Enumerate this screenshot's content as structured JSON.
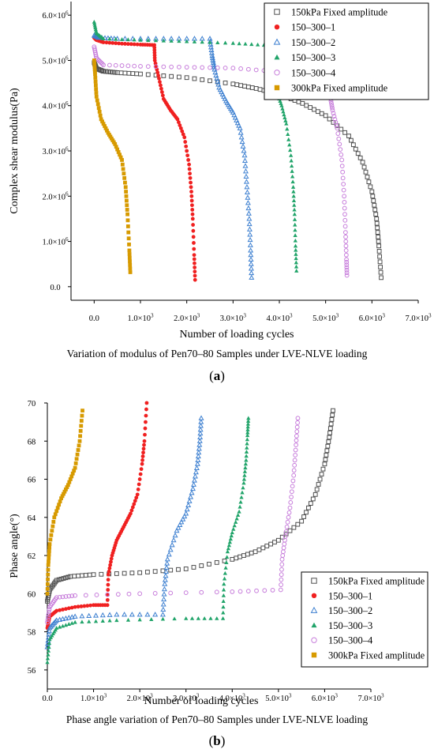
{
  "chart_data": [
    {
      "type": "scatter",
      "panel": "a",
      "xlabel": "Number of loading cycles",
      "ylabel": "Complex shear modulus(Pa)",
      "caption": "Variation of modulus of Pen70–80 Samples under LVE-NLVE loading",
      "xlim": [
        -500,
        7000
      ],
      "ylim": [
        -300000,
        6300000
      ],
      "x_ticks": [
        0,
        1000,
        2000,
        3000,
        4000,
        5000,
        6000,
        7000
      ],
      "x_tick_labels": [
        "0.0",
        "1.0×10^3",
        "2.0×10^3",
        "3.0×10^3",
        "4.0×10^3",
        "5.0×10^3",
        "6.0×10^3",
        "7.0×10^3"
      ],
      "y_ticks": [
        0,
        1000000,
        2000000,
        3000000,
        4000000,
        5000000,
        6000000
      ],
      "y_tick_labels": [
        "0.0",
        "1.0×10^6",
        "2.0×10^6",
        "3.0×10^6",
        "4.0×10^6",
        "5.0×10^6",
        "6.0×10^6"
      ],
      "legend_position": "top-right",
      "series": [
        {
          "name": "150kPa Fixed amplitude",
          "marker": "square-open",
          "color": "#505050",
          "points": [
            [
              0,
              4950000
            ],
            [
              50,
              4820000
            ],
            [
              200,
              4760000
            ],
            [
              500,
              4730000
            ],
            [
              1000,
              4700000
            ],
            [
              2000,
              4620000
            ],
            [
              3000,
              4480000
            ],
            [
              3500,
              4380000
            ],
            [
              4000,
              4250000
            ],
            [
              4500,
              4050000
            ],
            [
              5000,
              3780000
            ],
            [
              5500,
              3330000
            ],
            [
              5800,
              2750000
            ],
            [
              6000,
              2100000
            ],
            [
              6100,
              1500000
            ],
            [
              6150,
              900000
            ],
            [
              6200,
              200000
            ]
          ]
        },
        {
          "name": "150–300–1",
          "marker": "circle-filled",
          "color": "#f02020",
          "points": [
            [
              0,
              5500000
            ],
            [
              50,
              5450000
            ],
            [
              200,
              5400000
            ],
            [
              600,
              5370000
            ],
            [
              1000,
              5350000
            ],
            [
              1300,
              5340000
            ],
            [
              1310,
              5000000
            ],
            [
              1400,
              4600000
            ],
            [
              1500,
              4150000
            ],
            [
              1650,
              3900000
            ],
            [
              1800,
              3700000
            ],
            [
              1950,
              3300000
            ],
            [
              2050,
              2700000
            ],
            [
              2100,
              2100000
            ],
            [
              2130,
              1500000
            ],
            [
              2160,
              700000
            ],
            [
              2180,
              150000
            ]
          ]
        },
        {
          "name": "150–300–2",
          "marker": "triangle-open",
          "color": "#3c7fd0",
          "points": [
            [
              0,
              5550000
            ],
            [
              100,
              5500000
            ],
            [
              500,
              5480000
            ],
            [
              1500,
              5480000
            ],
            [
              2500,
              5480000
            ],
            [
              2550,
              5100000
            ],
            [
              2600,
              4800000
            ],
            [
              2700,
              4400000
            ],
            [
              2850,
              4100000
            ],
            [
              3000,
              3850000
            ],
            [
              3150,
              3500000
            ],
            [
              3250,
              2900000
            ],
            [
              3300,
              2200000
            ],
            [
              3350,
              1500000
            ],
            [
              3380,
              800000
            ],
            [
              3400,
              200000
            ]
          ]
        },
        {
          "name": "150–300–3",
          "marker": "triangle-filled",
          "color": "#21a46a",
          "points": [
            [
              0,
              5850000
            ],
            [
              50,
              5600000
            ],
            [
              200,
              5480000
            ],
            [
              1000,
              5450000
            ],
            [
              2000,
              5420000
            ],
            [
              3000,
              5380000
            ],
            [
              3800,
              5330000
            ],
            [
              3820,
              4950000
            ],
            [
              3850,
              4600000
            ],
            [
              3950,
              4300000
            ],
            [
              4050,
              4000000
            ],
            [
              4150,
              3600000
            ],
            [
              4250,
              2900000
            ],
            [
              4300,
              2200000
            ],
            [
              4330,
              1600000
            ],
            [
              4350,
              900000
            ],
            [
              4370,
              350000
            ]
          ]
        },
        {
          "name": "150–300–4",
          "marker": "circle-open",
          "color": "#c77ddb",
          "points": [
            [
              0,
              5300000
            ],
            [
              50,
              5050000
            ],
            [
              200,
              4900000
            ],
            [
              1000,
              4870000
            ],
            [
              2000,
              4850000
            ],
            [
              3000,
              4830000
            ],
            [
              4000,
              4750000
            ],
            [
              4800,
              4650000
            ],
            [
              5050,
              4620000
            ],
            [
              5100,
              4200000
            ],
            [
              5150,
              3900000
            ],
            [
              5250,
              3500000
            ],
            [
              5350,
              2800000
            ],
            [
              5400,
              2000000
            ],
            [
              5430,
              1200000
            ],
            [
              5450,
              600000
            ],
            [
              5460,
              250000
            ]
          ]
        },
        {
          "name": "300kPa Fixed amplitude",
          "marker": "square-filled",
          "color": "#d79a00",
          "points": [
            [
              0,
              5000000
            ],
            [
              20,
              4700000
            ],
            [
              50,
              4200000
            ],
            [
              150,
              3700000
            ],
            [
              300,
              3400000
            ],
            [
              450,
              3150000
            ],
            [
              600,
              2800000
            ],
            [
              680,
              2200000
            ],
            [
              720,
              1600000
            ],
            [
              760,
              800000
            ],
            [
              780,
              320000
            ]
          ]
        }
      ]
    },
    {
      "type": "scatter",
      "panel": "b",
      "xlabel": "Number of loading cycles",
      "ylabel": "Phase angle(°)",
      "caption": "Phase angle variation of Pen70–80 Samples under LVE-NLVE loading",
      "xlim": [
        0,
        7000
      ],
      "ylim": [
        55,
        70
      ],
      "x_ticks": [
        0,
        1000,
        2000,
        3000,
        4000,
        5000,
        6000,
        7000
      ],
      "x_tick_labels": [
        "0.0",
        "1.0×10^3",
        "2.0×10^3",
        "3.0×10^3",
        "4.0×10^3",
        "5.0×10^3",
        "6.0×10^3",
        "7.0×10^3"
      ],
      "y_ticks": [
        56,
        58,
        60,
        62,
        64,
        66,
        68,
        70
      ],
      "y_tick_labels": [
        "56",
        "58",
        "60",
        "62",
        "64",
        "66",
        "68",
        "70"
      ],
      "legend_position": "bottom-right",
      "series": [
        {
          "name": "150kPa Fixed amplitude",
          "marker": "square-open",
          "color": "#505050",
          "points": [
            [
              0,
              59.6
            ],
            [
              50,
              60.2
            ],
            [
              200,
              60.7
            ],
            [
              500,
              60.9
            ],
            [
              1000,
              61.0
            ],
            [
              2000,
              61.1
            ],
            [
              3000,
              61.3
            ],
            [
              4000,
              61.8
            ],
            [
              4500,
              62.2
            ],
            [
              5000,
              62.8
            ],
            [
              5500,
              63.8
            ],
            [
              5800,
              65.2
            ],
            [
              6000,
              66.8
            ],
            [
              6100,
              68.2
            ],
            [
              6180,
              69.6
            ]
          ]
        },
        {
          "name": "150–300–1",
          "marker": "circle-filled",
          "color": "#f02020",
          "points": [
            [
              0,
              58.2
            ],
            [
              50,
              58.8
            ],
            [
              200,
              59.1
            ],
            [
              600,
              59.3
            ],
            [
              1000,
              59.4
            ],
            [
              1300,
              59.4
            ],
            [
              1320,
              61.0
            ],
            [
              1400,
              62.0
            ],
            [
              1500,
              62.8
            ],
            [
              1650,
              63.5
            ],
            [
              1800,
              64.2
            ],
            [
              1950,
              65.2
            ],
            [
              2050,
              66.8
            ],
            [
              2100,
              68.0
            ],
            [
              2150,
              70.0
            ]
          ]
        },
        {
          "name": "150–300–2",
          "marker": "triangle-open",
          "color": "#3c7fd0",
          "points": [
            [
              0,
              57.2
            ],
            [
              50,
              58.2
            ],
            [
              200,
              58.6
            ],
            [
              600,
              58.8
            ],
            [
              1500,
              58.9
            ],
            [
              2500,
              58.9
            ],
            [
              2540,
              60.5
            ],
            [
              2600,
              61.8
            ],
            [
              2800,
              63.3
            ],
            [
              3000,
              64.2
            ],
            [
              3150,
              65.5
            ],
            [
              3250,
              66.8
            ],
            [
              3300,
              68.0
            ],
            [
              3330,
              69.2
            ]
          ]
        },
        {
          "name": "150–300–3",
          "marker": "triangle-filled",
          "color": "#21a46a",
          "points": [
            [
              0,
              56.4
            ],
            [
              50,
              57.6
            ],
            [
              200,
              58.2
            ],
            [
              600,
              58.5
            ],
            [
              1500,
              58.6
            ],
            [
              3000,
              58.7
            ],
            [
              3800,
              58.7
            ],
            [
              3820,
              60.5
            ],
            [
              3900,
              62.2
            ],
            [
              4000,
              63.2
            ],
            [
              4150,
              64.3
            ],
            [
              4250,
              65.8
            ],
            [
              4300,
              67.0
            ],
            [
              4330,
              68.3
            ],
            [
              4350,
              69.2
            ]
          ]
        },
        {
          "name": "150–300–4",
          "marker": "circle-open",
          "color": "#c77ddb",
          "points": [
            [
              0,
              58.5
            ],
            [
              50,
              59.3
            ],
            [
              200,
              59.8
            ],
            [
              600,
              59.9
            ],
            [
              2000,
              60.0
            ],
            [
              4000,
              60.1
            ],
            [
              5050,
              60.2
            ],
            [
              5080,
              61.8
            ],
            [
              5150,
              63.0
            ],
            [
              5250,
              64.5
            ],
            [
              5330,
              66.2
            ],
            [
              5380,
              67.8
            ],
            [
              5420,
              69.2
            ]
          ]
        },
        {
          "name": "300kPa Fixed amplitude",
          "marker": "square-filled",
          "color": "#d79a00",
          "points": [
            [
              0,
              60.0
            ],
            [
              20,
              61.5
            ],
            [
              50,
              62.6
            ],
            [
              150,
              64.0
            ],
            [
              300,
              65.0
            ],
            [
              450,
              65.7
            ],
            [
              600,
              66.6
            ],
            [
              700,
              68.0
            ],
            [
              760,
              69.6
            ]
          ]
        }
      ]
    }
  ],
  "panel_labels": {
    "a": "a",
    "b": "b"
  }
}
